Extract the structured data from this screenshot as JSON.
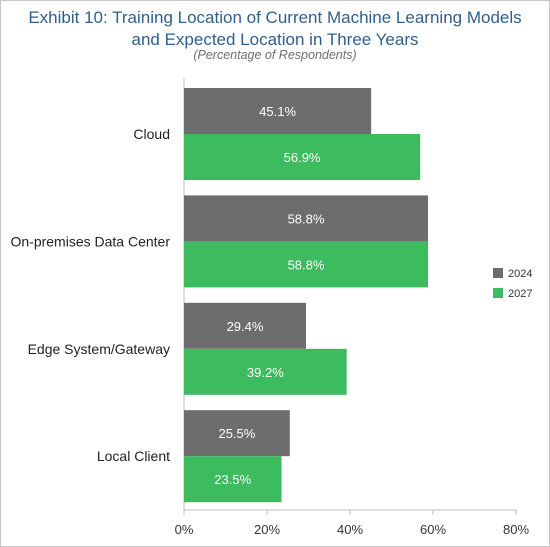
{
  "chart_data": {
    "type": "bar",
    "orientation": "horizontal",
    "title": "Exhibit 10: Training Location of Current Machine Learning Models and Expected Location in Three Years",
    "title_lines": [
      "Exhibit 10: Training Location of Current Machine Learning Models",
      "and Expected Location in Three Years"
    ],
    "subtitle": "(Percentage of Respondents)",
    "categories": [
      "Cloud",
      "On-premises Data Center",
      "Edge System/Gateway",
      "Local Client"
    ],
    "series": [
      {
        "name": "2024",
        "values": [
          45.1,
          58.8,
          29.4,
          25.5
        ],
        "labels": [
          "45.1%",
          "58.8%",
          "29.4%",
          "25.5%"
        ],
        "color": "#6d6d6d"
      },
      {
        "name": "2027",
        "values": [
          56.9,
          58.8,
          39.2,
          23.5
        ],
        "labels": [
          "56.9%",
          "58.8%",
          "39.2%",
          "23.5%"
        ],
        "color": "#3dbb5f"
      }
    ],
    "xlim": [
      0,
      80
    ],
    "xticks": [
      0,
      20,
      40,
      60,
      80
    ],
    "xtick_labels": [
      "0%",
      "20%",
      "40%",
      "60%",
      "80%"
    ],
    "grid": false,
    "legend_position": "right"
  }
}
